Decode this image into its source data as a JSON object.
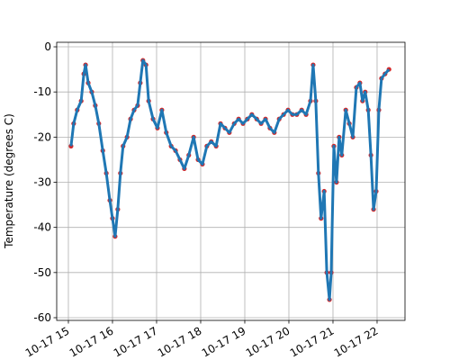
{
  "chart_data": {
    "type": "line",
    "y_label": "Temperature (degrees C)",
    "x": [
      15.06,
      15.12,
      15.2,
      15.29,
      15.35,
      15.39,
      15.45,
      15.53,
      15.61,
      15.69,
      15.78,
      15.86,
      15.94,
      16.0,
      16.06,
      16.12,
      16.18,
      16.24,
      16.33,
      16.41,
      16.49,
      16.57,
      16.63,
      16.69,
      16.76,
      16.82,
      16.92,
      17.02,
      17.12,
      17.22,
      17.33,
      17.43,
      17.53,
      17.63,
      17.73,
      17.84,
      17.94,
      18.04,
      18.14,
      18.24,
      18.35,
      18.45,
      18.55,
      18.65,
      18.76,
      18.86,
      18.96,
      19.06,
      19.16,
      19.27,
      19.37,
      19.47,
      19.57,
      19.67,
      19.78,
      19.88,
      19.98,
      20.08,
      20.18,
      20.29,
      20.39,
      20.49,
      20.55,
      20.61,
      20.67,
      20.73,
      20.8,
      20.86,
      20.92,
      20.96,
      21.02,
      21.08,
      21.14,
      21.2,
      21.29,
      21.37,
      21.45,
      21.53,
      21.61,
      21.67,
      21.73,
      21.8,
      21.86,
      21.92,
      21.98,
      22.04,
      22.1,
      22.18,
      22.27
    ],
    "values": [
      -22,
      -17,
      -14,
      -12,
      -6,
      -4,
      -8,
      -10,
      -13,
      -17,
      -23,
      -28,
      -34,
      -38,
      -42,
      -36,
      -28,
      -22,
      -20,
      -16,
      -14,
      -13,
      -8,
      -3,
      -4,
      -12,
      -16,
      -18,
      -14,
      -19,
      -22,
      -23,
      -25,
      -27,
      -24,
      -20,
      -25,
      -26,
      -22,
      -21,
      -22,
      -17,
      -18,
      -19,
      -17,
      -16,
      -17,
      -16,
      -15,
      -16,
      -17,
      -16,
      -18,
      -19,
      -16,
      -15,
      -14,
      -15,
      -15,
      -14,
      -15,
      -12,
      -4,
      -12,
      -28,
      -38,
      -32,
      -50,
      -56,
      -50,
      -22,
      -30,
      -20,
      -24,
      -14,
      -17,
      -20,
      -9,
      -8,
      -12,
      -10,
      -14,
      -24,
      -36,
      -32,
      -14,
      -7,
      -6,
      -5
    ],
    "line_color": "#1f77b4",
    "marker_color": "#d62728",
    "xlim": [
      14.735,
      22.633
    ],
    "ylim": [
      -60.6,
      1.0
    ],
    "xticks": [
      {
        "value": 15,
        "label": "10-17 15"
      },
      {
        "value": 16,
        "label": "10-17 16"
      },
      {
        "value": 17,
        "label": "10-17 17"
      },
      {
        "value": 18,
        "label": "10-17 18"
      },
      {
        "value": 19,
        "label": "10-17 19"
      },
      {
        "value": 20,
        "label": "10-17 20"
      },
      {
        "value": 21,
        "label": "10-17 21"
      },
      {
        "value": 22,
        "label": "10-17 22"
      }
    ],
    "yticks": [
      -60,
      -50,
      -40,
      -30,
      -20,
      -10,
      0
    ],
    "grid": true
  }
}
